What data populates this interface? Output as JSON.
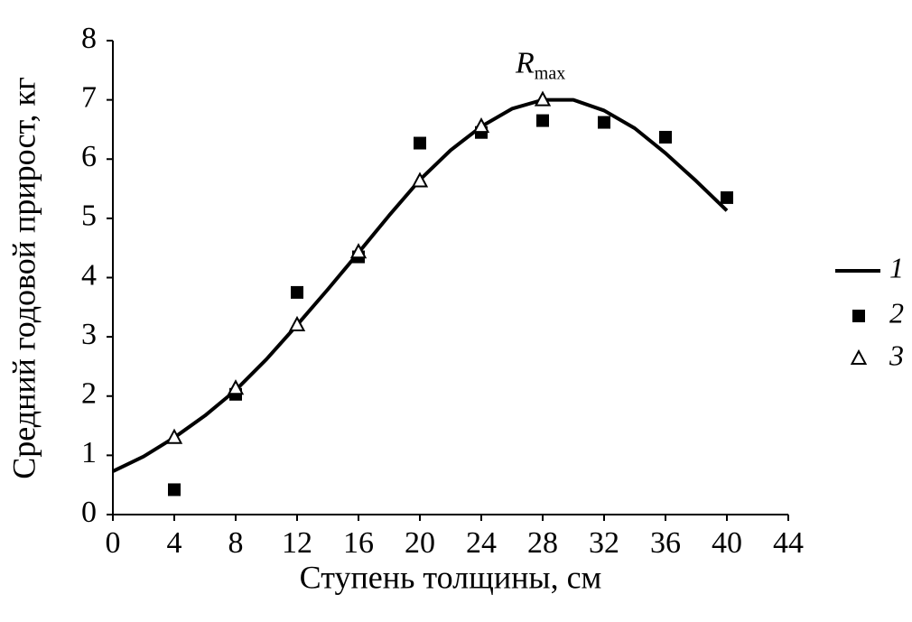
{
  "chart_data": {
    "type": "line",
    "x_label": "Ступень толщины, см",
    "y_label": "Средний годовой прирост, кг",
    "xlim": [
      0,
      44
    ],
    "xticks": [
      0,
      4,
      8,
      12,
      16,
      20,
      24,
      28,
      32,
      36,
      40,
      44
    ],
    "ylim": [
      0,
      8
    ],
    "yticks": [
      0,
      1,
      2,
      3,
      4,
      5,
      6,
      7,
      8
    ],
    "grid": false,
    "legend": "right",
    "annotation": {
      "text": "R",
      "subscript": "max",
      "x": 28,
      "y": 7.0
    },
    "series": [
      {
        "name": "1",
        "color": "#000000",
        "marker": "line",
        "x": [
          0,
          2,
          4,
          6,
          8,
          10,
          12,
          14,
          16,
          18,
          20,
          22,
          24,
          26,
          28,
          30,
          32,
          34,
          36,
          38,
          40
        ],
        "values": [
          0.73,
          0.98,
          1.3,
          1.67,
          2.1,
          2.62,
          3.2,
          3.8,
          4.42,
          5.05,
          5.65,
          6.15,
          6.55,
          6.85,
          7.0,
          7.0,
          6.82,
          6.52,
          6.1,
          5.63,
          5.13
        ]
      },
      {
        "name": "2",
        "color": "#000000",
        "marker": "square",
        "x": [
          4,
          8,
          12,
          16,
          20,
          24,
          28,
          32,
          36,
          40
        ],
        "values": [
          0.42,
          2.03,
          3.75,
          4.35,
          6.27,
          6.45,
          6.65,
          6.62,
          6.37,
          5.35
        ]
      },
      {
        "name": "3",
        "color": "#000000",
        "marker": "triangle",
        "x": [
          4,
          8,
          12,
          16,
          20,
          24,
          28
        ],
        "values": [
          1.3,
          2.13,
          3.2,
          4.43,
          5.63,
          6.55,
          7.0
        ]
      }
    ]
  }
}
